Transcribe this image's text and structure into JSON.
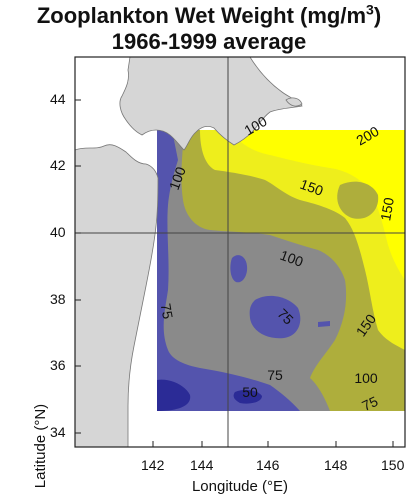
{
  "title_line1": "Zooplankton Wet Weight (mg/m",
  "title_sup": "3",
  "title_line1_close": ")",
  "title_line2": "1966-1999 average",
  "y_axis_label": "Latitude (°N)",
  "x_axis_label": "Longitude (°E)",
  "y_ticks": [
    "44",
    "42",
    "40",
    "38",
    "36",
    "34"
  ],
  "x_ticks": [
    "142",
    "144",
    "146",
    "148",
    "150"
  ],
  "contour_labels": [
    "200",
    "150",
    "150",
    "100",
    "100",
    "75",
    "75",
    "150",
    "75",
    "100",
    "50",
    "75",
    "100"
  ],
  "colors": {
    "land": "#d6d6d6",
    "deep_blue": "#2b2b96",
    "blue": "#5454ad",
    "gray": "#8a8a8a",
    "olive": "#aeae3c",
    "yellow": "#eeee1c",
    "bright_yellow": "#ffff00"
  }
}
